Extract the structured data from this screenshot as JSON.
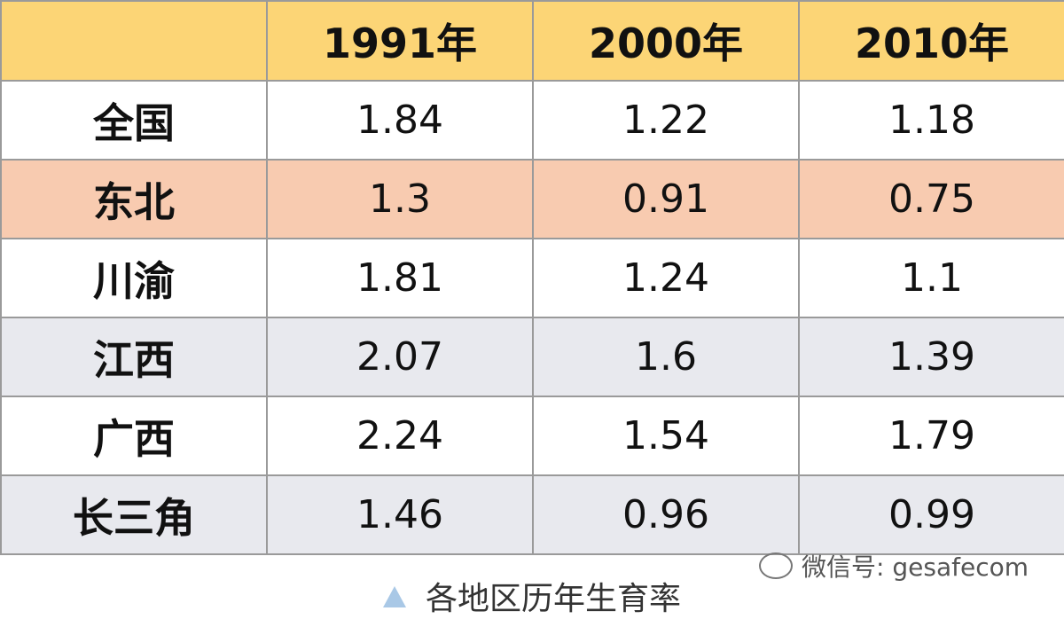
{
  "table": {
    "columns": [
      "1991年",
      "2000年",
      "2010年"
    ],
    "rows": [
      [
        "全国",
        "1.84",
        "1.22",
        "1.18"
      ],
      [
        "东北",
        "1.3",
        "0.91",
        "0.75"
      ],
      [
        "川渝",
        "1.81",
        "1.24",
        "1.1"
      ],
      [
        "江西",
        "2.07",
        "1.6",
        "1.39"
      ],
      [
        "广西",
        "2.24",
        "1.54",
        "1.79"
      ],
      [
        "长三角",
        "1.46",
        "0.96",
        "0.99"
      ]
    ]
  },
  "watermark": "微信号: gesafecom",
  "caption": "各地区历年生育率"
}
